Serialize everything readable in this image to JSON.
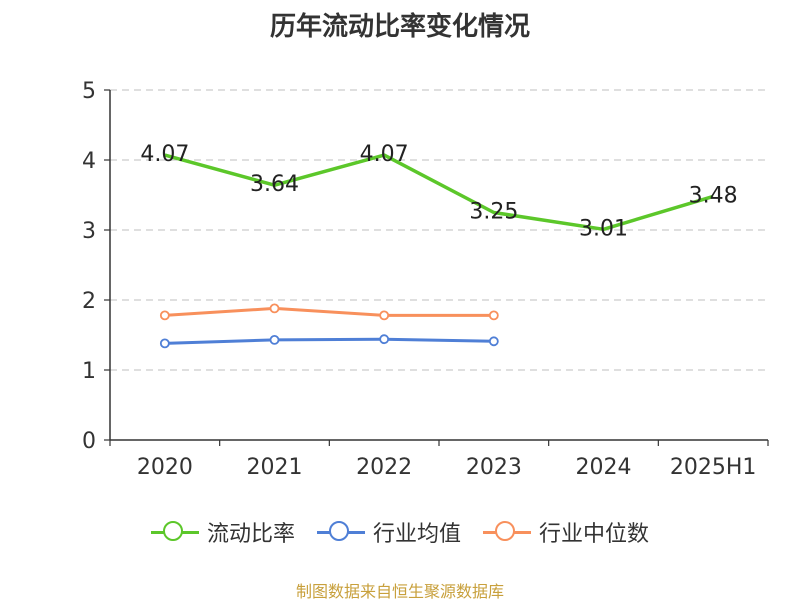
{
  "chart_data": {
    "type": "line",
    "title": "历年流动比率变化情况",
    "categories": [
      "2020",
      "2021",
      "2022",
      "2023",
      "2024",
      "2025H1"
    ],
    "ylim": [
      0,
      5
    ],
    "yticks": [
      "0",
      "1",
      "2",
      "3",
      "4",
      "5"
    ],
    "grid": true,
    "legend_position": "bottom",
    "series": [
      {
        "name": "流动比率",
        "color": "#5cc72a",
        "values": [
          4.07,
          3.64,
          4.07,
          3.25,
          3.01,
          3.48
        ],
        "labels": [
          "4.07",
          "3.64",
          "4.07",
          "3.25",
          "3.01",
          "3.48"
        ],
        "markers": false
      },
      {
        "name": "行业均值",
        "color": "#4f7fd6",
        "values": [
          1.38,
          1.43,
          1.44,
          1.41,
          null,
          null
        ],
        "markers": true
      },
      {
        "name": "行业中位数",
        "color": "#f8905c",
        "values": [
          1.78,
          1.88,
          1.78,
          1.78,
          null,
          null
        ],
        "markers": true
      }
    ]
  },
  "source": "制图数据来自恒生聚源数据库"
}
